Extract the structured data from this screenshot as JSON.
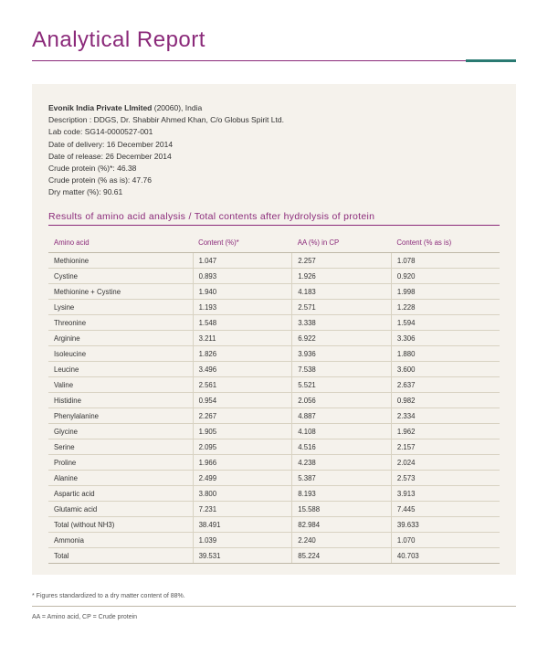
{
  "title": "Analytical Report",
  "meta": {
    "company": "Evonik India Private LImited",
    "company_suffix": " (20060), India",
    "description_label": "Description : ",
    "description": "DDGS, Dr. Shabbir Ahmed Khan, C/o Globus Spirit Ltd.",
    "labcode_label": "Lab code: ",
    "labcode": "SG14-0000527-001",
    "delivery_label": "Date of delivery: ",
    "delivery": "16 December 2014",
    "release_label": "Date of release: ",
    "release": "26 December 2014",
    "cp_star_label": "Crude protein (%)*: ",
    "cp_star": "46.38",
    "cp_asis_label": "Crude protein (% as is):   ",
    "cp_asis": "47.76",
    "drymatter_label": "Dry matter (%): ",
    "drymatter": "90.61"
  },
  "section_heading": "Results of amino acid analysis / Total contents after hydrolysis of protein",
  "table": {
    "columns": [
      "Amino acid",
      "Content (%)*",
      "AA (%) in CP",
      "Content (% as is)"
    ],
    "rows": [
      [
        "Methionine",
        "1.047",
        "2.257",
        "1.078"
      ],
      [
        "Cystine",
        "0.893",
        "1.926",
        "0.920"
      ],
      [
        "Methionine + Cystine",
        "1.940",
        "4.183",
        "1.998"
      ],
      [
        "Lysine",
        "1.193",
        "2.571",
        "1.228"
      ],
      [
        "Threonine",
        "1.548",
        "3.338",
        "1.594"
      ],
      [
        "Arginine",
        "3.211",
        "6.922",
        "3.306"
      ],
      [
        "Isoleucine",
        "1.826",
        "3.936",
        "1.880"
      ],
      [
        "Leucine",
        "3.496",
        "7.538",
        "3.600"
      ],
      [
        "Valine",
        "2.561",
        "5.521",
        "2.637"
      ],
      [
        "Histidine",
        "0.954",
        "2.056",
        "0.982"
      ],
      [
        "Phenylalanine",
        "2.267",
        "4.887",
        "2.334"
      ],
      [
        "Glycine",
        "1.905",
        "4.108",
        "1.962"
      ],
      [
        "Serine",
        "2.095",
        "4.516",
        "2.157"
      ],
      [
        "Proline",
        "1.966",
        "4.238",
        "2.024"
      ],
      [
        "Alanine",
        "2.499",
        "5.387",
        "2.573"
      ],
      [
        "Aspartic acid",
        "3.800",
        "8.193",
        "3.913"
      ],
      [
        "Glutamic acid",
        "7.231",
        "15.588",
        "7.445"
      ],
      [
        "Total (without NH3)",
        "38.491",
        "82.984",
        "39.633"
      ],
      [
        "Ammonia",
        "1.039",
        "2.240",
        "1.070"
      ],
      [
        "Total",
        "39.531",
        "85.224",
        "40.703"
      ]
    ]
  },
  "footnotes": {
    "line1": "* Figures standardized to a dry matter content of 88%.",
    "line2": "AA = Amino acid, CP = Crude protein"
  },
  "colors": {
    "brand_purple": "#8b2a7a",
    "accent_teal": "#2a7a72",
    "panel_bg": "#f5f2ec",
    "rule_gray": "#bfb8a8",
    "row_border": "#d8d2c2",
    "text": "#333333"
  }
}
